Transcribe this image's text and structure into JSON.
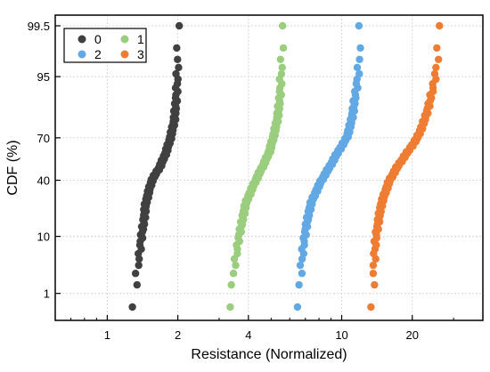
{
  "chart_data": {
    "type": "scatter",
    "xlabel": "Resistance (Normalized)",
    "ylabel": "CDF (%)",
    "x_scale": "log",
    "y_scale": "probability",
    "x_ticks": [
      1,
      2,
      4,
      10,
      20
    ],
    "x_tick_labels": [
      "1",
      "2",
      "4",
      "10",
      "20"
    ],
    "xlim": [
      0.6,
      40
    ],
    "y_ticks": [
      1,
      10,
      40,
      70,
      95,
      99.5
    ],
    "y_tick_labels": [
      "1",
      "10",
      "40",
      "70",
      "95",
      "99.5"
    ],
    "ylim_percent": [
      0.5,
      99.5
    ],
    "grid": true,
    "legend_position": "top-left",
    "legend_columns": 2,
    "series": [
      {
        "name": "0",
        "color": "#404040",
        "cdf_knots": [
          [
            0.5,
            1.28
          ],
          [
            1,
            1.32
          ],
          [
            5,
            1.37
          ],
          [
            10,
            1.4
          ],
          [
            15,
            1.43
          ],
          [
            25,
            1.46
          ],
          [
            40,
            1.55
          ],
          [
            50,
            1.68
          ],
          [
            60,
            1.78
          ],
          [
            70,
            1.86
          ],
          [
            80,
            1.93
          ],
          [
            90,
            1.97
          ],
          [
            95,
            1.99
          ],
          [
            99.5,
            2.0
          ]
        ]
      },
      {
        "name": "1",
        "color": "#9acd7e",
        "cdf_knots": [
          [
            0.5,
            3.3
          ],
          [
            1,
            3.4
          ],
          [
            5,
            3.55
          ],
          [
            10,
            3.65
          ],
          [
            15,
            3.75
          ],
          [
            25,
            3.9
          ],
          [
            40,
            4.3
          ],
          [
            50,
            4.6
          ],
          [
            60,
            4.9
          ],
          [
            70,
            5.1
          ],
          [
            80,
            5.3
          ],
          [
            90,
            5.45
          ],
          [
            95,
            5.5
          ],
          [
            99.5,
            5.6
          ]
        ]
      },
      {
        "name": "2",
        "color": "#62a8e5",
        "cdf_knots": [
          [
            0.5,
            6.5
          ],
          [
            1,
            6.6
          ],
          [
            5,
            6.8
          ],
          [
            10,
            6.95
          ],
          [
            15,
            7.1
          ],
          [
            25,
            7.4
          ],
          [
            40,
            8.2
          ],
          [
            50,
            8.9
          ],
          [
            60,
            9.6
          ],
          [
            70,
            10.5
          ],
          [
            80,
            11.0
          ],
          [
            90,
            11.4
          ],
          [
            95,
            11.7
          ],
          [
            99.5,
            12.0
          ]
        ]
      },
      {
        "name": "3",
        "color": "#ee7c33",
        "cdf_knots": [
          [
            0.5,
            13.5
          ],
          [
            1,
            13.6
          ],
          [
            5,
            13.8
          ],
          [
            10,
            14.0
          ],
          [
            15,
            14.3
          ],
          [
            25,
            14.8
          ],
          [
            40,
            16.0
          ],
          [
            50,
            17.3
          ],
          [
            60,
            19.0
          ],
          [
            70,
            21.0
          ],
          [
            80,
            22.5
          ],
          [
            90,
            24.0
          ],
          [
            95,
            25.0
          ],
          [
            99.5,
            26.0
          ]
        ]
      }
    ],
    "points_per_series": 100
  }
}
